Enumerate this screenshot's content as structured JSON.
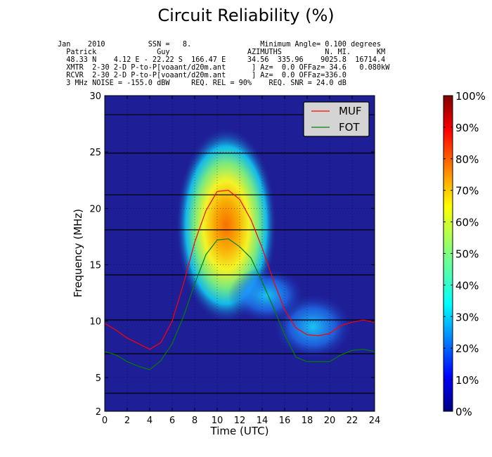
{
  "title": "Circuit Reliability (%)",
  "header_lines": [
    "Jan    2010          SSN =   8.                Minimum Angle= 0.100 degrees",
    "  Patrick              Guy                  AZIMUTHS          N. MI.      KM",
    "  48.33 N    4.12 E - 22.22 S  166.47 E     34.56  335.96    9025.8  16714.4",
    "  XMTR  2-30 2-D P-to-P[voaant/d20m.ant      ] Az=  0.0 OFFaz= 34.6   0.080kW",
    "  RCVR  2-30 2-D P-to-P[voaant/d20m.ant      ] Az=  0.0 OFFaz=336.0",
    "  3 MHz NOISE = -155.0 dBW     REQ. REL = 90%    REQ. SNR = 24.0 dB"
  ],
  "colors": {
    "background_low": "#1e1e96",
    "muf": "#ff0000",
    "fot": "#008000"
  },
  "chart_data": {
    "type": "heatmap",
    "title": "Circuit Reliability (%)",
    "xlabel": "Time (UTC)",
    "ylabel": "Frequency (MHz)",
    "xlim": [
      0,
      24
    ],
    "ylim": [
      2,
      30
    ],
    "x_ticks": [
      0,
      2,
      4,
      6,
      8,
      10,
      12,
      14,
      16,
      18,
      20,
      22,
      24
    ],
    "y_ticks": [
      2,
      5,
      10,
      15,
      20,
      25,
      30
    ],
    "x_tick_labels": [
      "0",
      "2",
      "4",
      "6",
      "8",
      "10",
      "12",
      "14",
      "16",
      "18",
      "20",
      "22",
      "24"
    ],
    "y_tick_labels": [
      "2",
      "5",
      "10",
      "15",
      "20",
      "25",
      "30"
    ],
    "horizontal_lines_mhz": [
      3.6,
      7.1,
      10.1,
      14.1,
      18.1,
      21.2,
      24.9,
      28.3
    ],
    "colorbar": {
      "range": [
        0,
        100
      ],
      "tick_labels": [
        "0%",
        "10%",
        "20%",
        "30%",
        "40%",
        "50%",
        "60%",
        "70%",
        "80%",
        "90%",
        "100%"
      ]
    },
    "grid": true,
    "legend_position": "top-right",
    "series": [
      {
        "name": "MUF",
        "x": [
          0,
          1,
          2,
          3,
          4,
          5,
          6,
          7,
          8,
          9,
          10,
          11,
          12,
          13,
          14,
          15,
          16,
          17,
          18,
          19,
          20,
          21,
          22,
          23,
          24
        ],
        "values": [
          9.8,
          9.2,
          8.5,
          8.0,
          7.5,
          8.1,
          10.0,
          13.3,
          17.0,
          19.8,
          21.5,
          21.6,
          20.8,
          19.0,
          16.5,
          13.6,
          11.0,
          9.4,
          8.8,
          8.7,
          8.9,
          9.6,
          9.9,
          10.1,
          9.9
        ]
      },
      {
        "name": "FOT",
        "x": [
          0,
          1,
          2,
          3,
          4,
          5,
          6,
          7,
          8,
          9,
          10,
          11,
          12,
          13,
          14,
          15,
          16,
          17,
          18,
          19,
          20,
          21,
          22,
          23,
          24
        ],
        "values": [
          7.3,
          7.0,
          6.4,
          6.0,
          5.7,
          6.5,
          8.0,
          10.4,
          13.3,
          15.9,
          17.2,
          17.3,
          16.6,
          15.6,
          13.5,
          11.2,
          8.8,
          6.8,
          6.4,
          6.4,
          6.4,
          7.0,
          7.4,
          7.5,
          7.3
        ]
      }
    ],
    "reliability_regions": [
      {
        "center_utc": 10.8,
        "center_mhz": 18.5,
        "peak_percent": 78
      },
      {
        "center_utc": 18.5,
        "center_mhz": 9.5,
        "peak_percent": 28
      }
    ]
  }
}
